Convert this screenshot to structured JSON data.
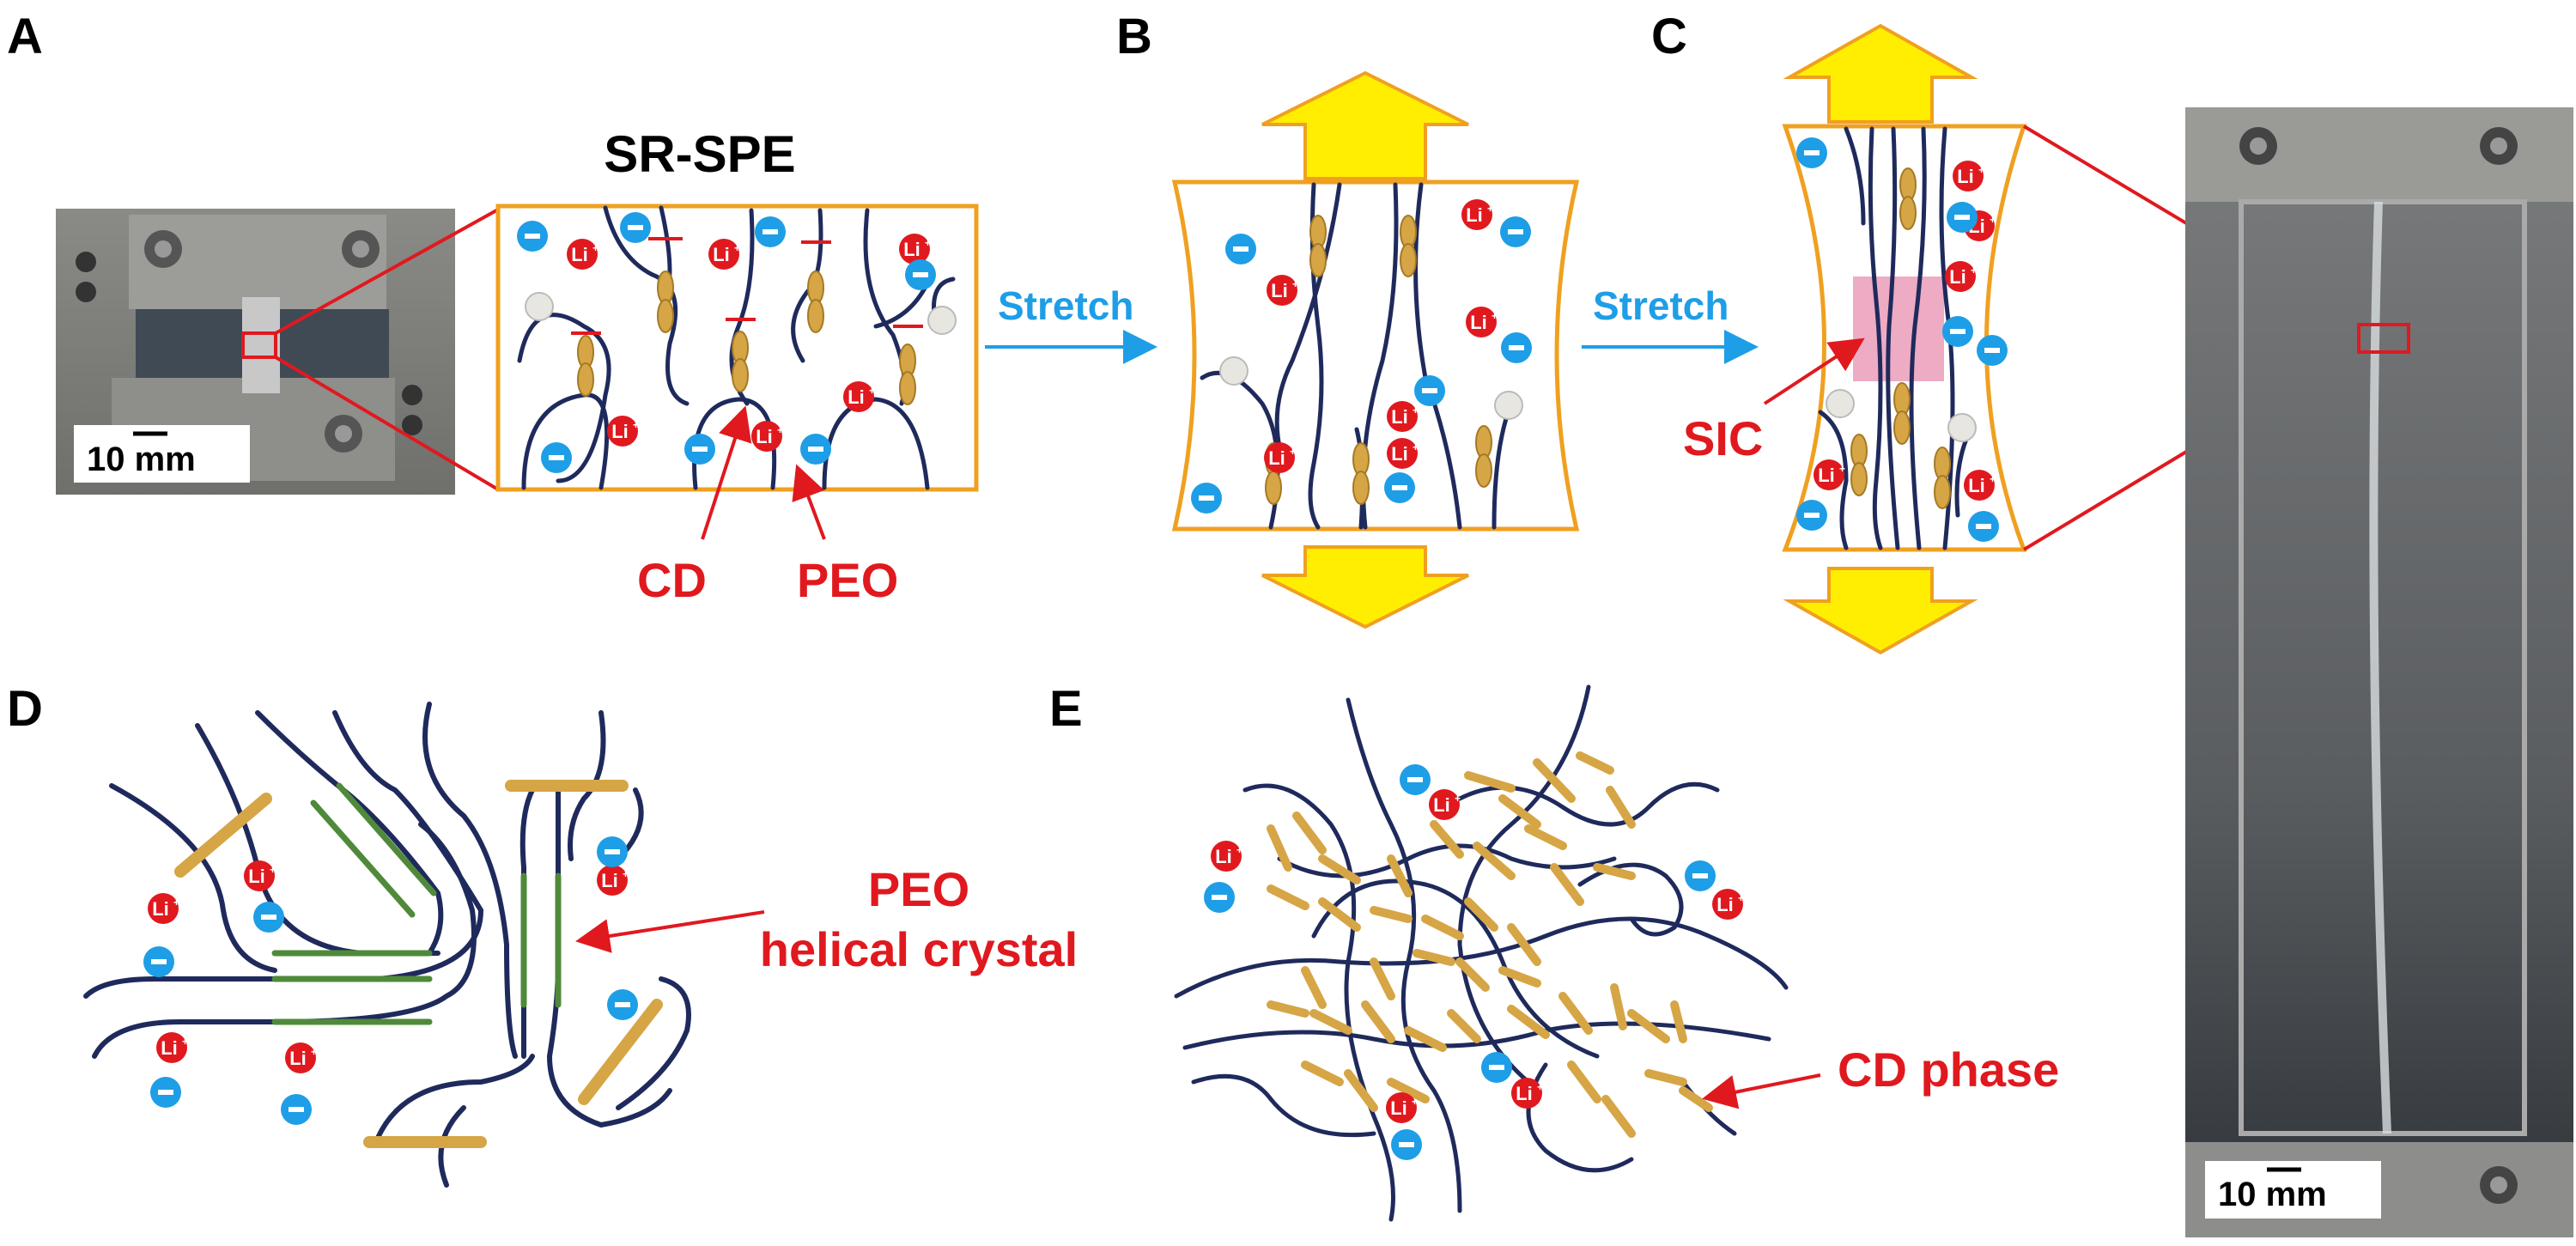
{
  "panels": {
    "a": "A",
    "b": "B",
    "c": "C",
    "d": "D",
    "e": "E"
  },
  "title": "SR-SPE",
  "arrows": {
    "stretch_1": "Stretch",
    "stretch_2": "Stretch"
  },
  "labels": {
    "cd": "CD",
    "peo": "PEO",
    "sic": "SIC",
    "peo_helical_1": "PEO",
    "peo_helical_2": "helical crystal",
    "cd_phase": "CD phase"
  },
  "scalebars": {
    "left": "10 mm",
    "right": "10 mm"
  },
  "ions": {
    "cation": "Li",
    "cation_sup": "+"
  },
  "colors": {
    "frame": "#f0a020",
    "accent_red": "#e0191f",
    "anion_blue": "#1e9ee6",
    "chain_navy": "#1f2a5c",
    "cd_gold": "#d6a545",
    "crystal_green": "#4f8a3a",
    "arrow_yellow": "#ffee00",
    "stretch_blue": "#1e9ee6",
    "sic_pink": "#e88fb0"
  }
}
